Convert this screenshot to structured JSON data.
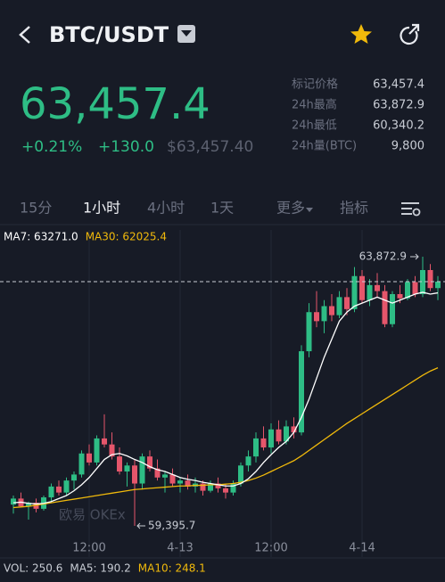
{
  "header": {
    "pair": "BTC/USDT"
  },
  "price": {
    "last": "63,457.4",
    "change_pct": "+0.21%",
    "change": "+130.0",
    "usd": "$63,457.40"
  },
  "stats": [
    {
      "label": "标记价格",
      "value": "63,457.4"
    },
    {
      "label": "24h最高",
      "value": "63,872.9"
    },
    {
      "label": "24h最低",
      "value": "60,340.2"
    },
    {
      "label": "24h量(BTC)",
      "value": "9,800"
    }
  ],
  "tabs": [
    {
      "label": "15分",
      "active": false
    },
    {
      "label": "1小时",
      "active": true
    },
    {
      "label": "4小时",
      "active": false
    },
    {
      "label": "1天",
      "active": false
    },
    {
      "label": "更多",
      "active": false
    },
    {
      "label": "指标",
      "active": false
    }
  ],
  "chart": {
    "type": "candlestick",
    "up_color": "#2ebd85",
    "down_color": "#e5566b",
    "ma_labels": [
      {
        "text": "MA7: 63271.0",
        "color": "#ffffff"
      },
      {
        "text": "MA30: 62025.4",
        "color": "#f0b90b"
      }
    ],
    "ylim": [
      59248,
      64317
    ],
    "high_label": "63,872.9",
    "low_label": "59,395.7",
    "watermark": "欧易 OKEx",
    "times": [
      null,
      null,
      null,
      null,
      null,
      null,
      null,
      null,
      null,
      null,
      "12:00",
      null,
      null,
      null,
      null,
      null,
      null,
      null,
      null,
      null,
      null,
      null,
      "4-13",
      null,
      null,
      null,
      null,
      null,
      null,
      null,
      null,
      null,
      null,
      null,
      "12:00",
      null,
      null,
      null,
      null,
      null,
      null,
      null,
      null,
      null,
      null,
      null,
      "4-14",
      null,
      null,
      null,
      null,
      null,
      null,
      null,
      null,
      null,
      null
    ],
    "candles": [
      [
        59750,
        59900,
        59600,
        59850
      ],
      [
        59850,
        59950,
        59700,
        59720
      ],
      [
        59720,
        59800,
        59500,
        59780
      ],
      [
        59780,
        59850,
        59620,
        59680
      ],
      [
        59680,
        59900,
        59650,
        59870
      ],
      [
        59870,
        60100,
        59800,
        60050
      ],
      [
        60050,
        60150,
        59900,
        59950
      ],
      [
        59950,
        60200,
        59900,
        60150
      ],
      [
        60150,
        60300,
        60000,
        60250
      ],
      [
        60250,
        60650,
        60200,
        60600
      ],
      [
        60600,
        60750,
        60400,
        60450
      ],
      [
        60450,
        60900,
        60400,
        60850
      ],
      [
        60850,
        61250,
        60700,
        60750
      ],
      [
        60750,
        60950,
        60500,
        60550
      ],
      [
        60550,
        60700,
        60250,
        60300
      ],
      [
        60300,
        60450,
        60050,
        60400
      ],
      [
        60400,
        60500,
        59395.7,
        60100
      ],
      [
        60100,
        60600,
        60000,
        60550
      ],
      [
        60550,
        60650,
        60300,
        60350
      ],
      [
        60350,
        60500,
        60150,
        60200
      ],
      [
        60200,
        60300,
        59950,
        60250
      ],
      [
        60250,
        60350,
        60050,
        60100
      ],
      [
        60100,
        60200,
        59950,
        60150
      ],
      [
        60150,
        60250,
        60000,
        60050
      ],
      [
        60050,
        60200,
        59950,
        60100
      ],
      [
        60100,
        60150,
        59900,
        59980
      ],
      [
        59980,
        60150,
        59950,
        60100
      ],
      [
        60100,
        60200,
        59950,
        60020
      ],
      [
        60020,
        60100,
        59850,
        59950
      ],
      [
        59950,
        60150,
        59900,
        60100
      ],
      [
        60100,
        60450,
        60050,
        60400
      ],
      [
        60400,
        60650,
        60300,
        60550
      ],
      [
        60550,
        60950,
        60450,
        60850
      ],
      [
        60850,
        61050,
        60650,
        60700
      ],
      [
        60700,
        61100,
        60600,
        61000
      ],
      [
        61000,
        61150,
        60750,
        60800
      ],
      [
        60800,
        61150,
        60750,
        61050
      ],
      [
        61050,
        61200,
        60850,
        60950
      ],
      [
        60950,
        62400,
        60900,
        62300
      ],
      [
        62300,
        63100,
        62200,
        62950
      ],
      [
        62950,
        63300,
        62700,
        62800
      ],
      [
        62800,
        63150,
        62600,
        63050
      ],
      [
        63050,
        63250,
        62800,
        62900
      ],
      [
        62900,
        63300,
        62850,
        63200
      ],
      [
        63200,
        63350,
        62900,
        63000
      ],
      [
        63000,
        63700,
        62950,
        63550
      ],
      [
        63550,
        63650,
        63100,
        63150
      ],
      [
        63150,
        63500,
        63050,
        63400
      ],
      [
        63400,
        63600,
        63200,
        63300
      ],
      [
        63300,
        63400,
        62700,
        62750
      ],
      [
        62750,
        63300,
        62700,
        63250
      ],
      [
        63250,
        63400,
        63100,
        63180
      ],
      [
        63180,
        63500,
        63150,
        63450
      ],
      [
        63450,
        63550,
        63200,
        63250
      ],
      [
        63250,
        63872.9,
        63200,
        63650
      ],
      [
        63650,
        63750,
        63300,
        63350
      ],
      [
        63350,
        63550,
        63150,
        63457.4
      ]
    ],
    "ma7": [
      59780,
      59790,
      59770,
      59760,
      59770,
      59800,
      59850,
      59900,
      59980,
      60080,
      60200,
      60350,
      60500,
      60580,
      60600,
      60560,
      60500,
      60450,
      60380,
      60330,
      60300,
      60250,
      60200,
      60170,
      60150,
      60120,
      60100,
      60080,
      60060,
      60060,
      60100,
      60180,
      60300,
      60450,
      60580,
      60700,
      60800,
      60950,
      61200,
      61500,
      61850,
      62200,
      62500,
      62800,
      62950,
      63050,
      63100,
      63150,
      63200,
      63150,
      63100,
      63150,
      63200,
      63250,
      63280,
      63250,
      63271
    ],
    "ma30": [
      59700,
      59710,
      59720,
      59740,
      59760,
      59780,
      59800,
      59820,
      59840,
      59860,
      59880,
      59900,
      59920,
      59940,
      59960,
      59980,
      60000,
      60010,
      60020,
      60030,
      60040,
      60050,
      60060,
      60060,
      60070,
      60070,
      60080,
      60080,
      60090,
      60100,
      60120,
      60150,
      60190,
      60240,
      60300,
      60360,
      60420,
      60480,
      60560,
      60650,
      60740,
      60830,
      60920,
      61010,
      61100,
      61180,
      61260,
      61340,
      61420,
      61500,
      61580,
      61660,
      61740,
      61820,
      61900,
      61970,
      62025.4
    ],
    "ma7_color": "#ffffff",
    "ma30_color": "#f0b90b"
  },
  "volume": [
    {
      "text": "VOL: 250.6",
      "color": "#c8ccd4"
    },
    {
      "text": "MA5: 190.2",
      "color": "#c8ccd4"
    },
    {
      "text": "MA10: 248.1",
      "color": "#f0b90b"
    }
  ]
}
